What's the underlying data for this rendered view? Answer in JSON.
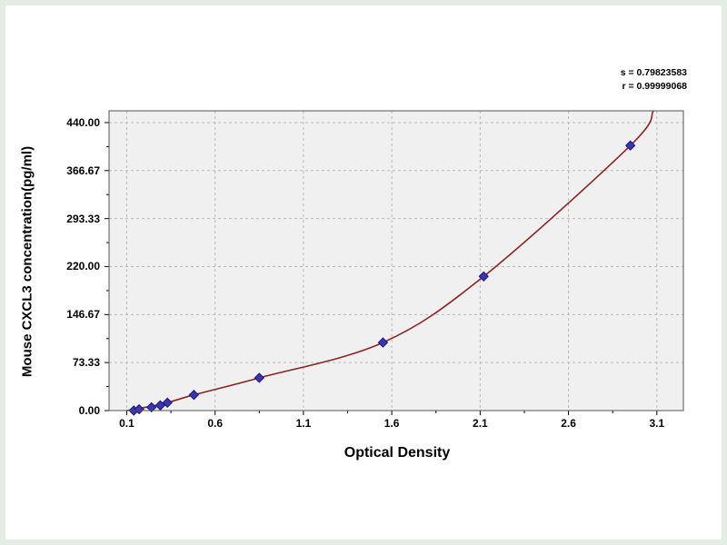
{
  "annotations": {
    "line1": "s = 0.79823583",
    "line2": "r = 0.99999068"
  },
  "chart_data": {
    "type": "scatter",
    "title": "",
    "xlabel": "Optical Density",
    "ylabel": "Mouse CXCL3 concentration(pg/ml)",
    "xlim": [
      0,
      3.25
    ],
    "ylim": [
      0,
      458
    ],
    "grid": true,
    "x_ticks": [
      0.1,
      0.6,
      1.1,
      1.6,
      2.1,
      2.6,
      3.1
    ],
    "x_tick_labels": [
      "0.1",
      "0.6",
      "1.1",
      "1.6",
      "2.1",
      "2.6",
      "3.1"
    ],
    "y_ticks": [
      0,
      73.33,
      146.67,
      220,
      293.33,
      366.67,
      440
    ],
    "y_tick_labels": [
      "0.00",
      "73.33",
      "146.67",
      "220.00",
      "293.33",
      "366.67",
      "440.00"
    ],
    "series": [
      {
        "name": "standard-points",
        "x": [
          0.14,
          0.17,
          0.24,
          0.29,
          0.33,
          0.48,
          0.85,
          1.55,
          2.12,
          2.95
        ],
        "y": [
          0,
          2,
          5,
          8,
          12,
          24,
          50,
          104,
          205,
          405
        ]
      }
    ],
    "fit_curve": {
      "name": "fitted-standard-curve",
      "anchors": [
        [
          0.1,
          0
        ],
        [
          0.3,
          10
        ],
        [
          0.48,
          24
        ],
        [
          0.85,
          50
        ],
        [
          1.55,
          104
        ],
        [
          2.12,
          205
        ],
        [
          2.95,
          405
        ],
        [
          3.08,
          458
        ]
      ]
    },
    "annotations": [
      "s = 0.79823583",
      "r = 0.99999068"
    ],
    "colors": {
      "point_fill": "#3a35b2",
      "point_stroke": "#1b1670",
      "curve": "#8b2323",
      "grid": "#b8b8b8",
      "plot_bg": "#f0f0f0",
      "plot_border": "#555555",
      "text": "#000000",
      "frame_tint": "#e3ede3"
    }
  }
}
